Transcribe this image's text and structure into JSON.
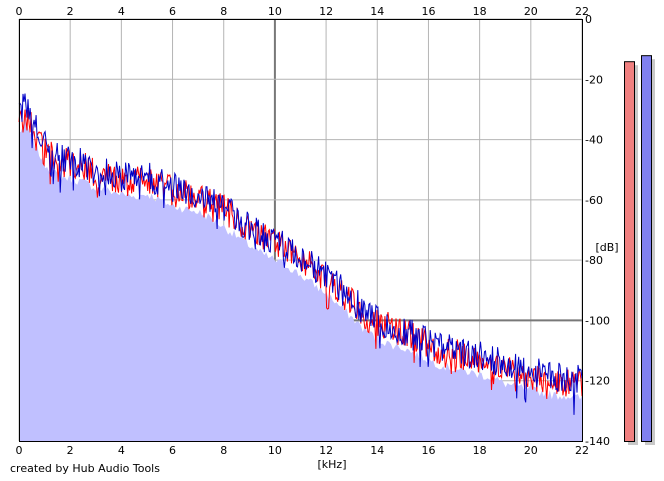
{
  "chart_data": {
    "type": "area",
    "xlabel": "[kHz]",
    "ylabel": "[dB]",
    "xlim": [
      0,
      22
    ],
    "ylim": [
      -140,
      0
    ],
    "x_ticks": [
      0,
      2,
      4,
      6,
      8,
      10,
      12,
      14,
      16,
      18,
      20,
      22
    ],
    "y_ticks": [
      0,
      -20,
      -40,
      -60,
      -80,
      -100,
      -120,
      -140
    ],
    "grid": true,
    "legend": "none",
    "colors": {
      "fill": "#c0c0ff",
      "series_red": "#ff0000",
      "series_blue": "#0000c8",
      "grid_minor": "#b4b4b4",
      "grid_major": "#787878",
      "meter_left": "#f08080",
      "meter_right": "#8080f0"
    },
    "series": [
      {
        "color": "#ff0000",
        "x": [
          0,
          0.25,
          0.5,
          1,
          1.5,
          2,
          2.5,
          3,
          3.5,
          4,
          4.5,
          5,
          5.5,
          6,
          6.5,
          7,
          7.5,
          8,
          8.5,
          9,
          9.5,
          10,
          10.5,
          11,
          11.5,
          12,
          12.5,
          13,
          13.5,
          14,
          14.5,
          15,
          15.5,
          16,
          16.5,
          17,
          17.5,
          18,
          18.5,
          19,
          19.5,
          20,
          20.5,
          21,
          21.5,
          22
        ],
        "values": [
          -35,
          -32,
          -36,
          -44,
          -47,
          -48,
          -49,
          -51,
          -52,
          -53,
          -54,
          -53,
          -55,
          -57,
          -58,
          -59,
          -61,
          -63,
          -67,
          -70,
          -72,
          -74,
          -77,
          -79,
          -82,
          -86,
          -90,
          -94,
          -98,
          -101,
          -102,
          -104,
          -106,
          -108,
          -110,
          -111,
          -112,
          -113,
          -114,
          -115,
          -117,
          -119,
          -119,
          -120,
          -121,
          -121
        ]
      },
      {
        "color": "#0000c8",
        "x": [
          0,
          0.25,
          0.5,
          1,
          1.5,
          2,
          2.5,
          3,
          3.5,
          4,
          4.5,
          5,
          5.5,
          6,
          6.5,
          7,
          7.5,
          8,
          8.5,
          9,
          9.5,
          10,
          10.5,
          11,
          11.5,
          12,
          12.5,
          13,
          13.5,
          14,
          14.5,
          15,
          15.5,
          16,
          16.5,
          17,
          17.5,
          18,
          18.5,
          19,
          19.5,
          20,
          20.5,
          21,
          21.5,
          22
        ],
        "values": [
          -32,
          -28,
          -34,
          -42,
          -46,
          -47,
          -48,
          -50,
          -51,
          -52,
          -53,
          -52,
          -54,
          -56,
          -57,
          -58,
          -60,
          -63,
          -66,
          -69,
          -72,
          -74,
          -76,
          -79,
          -82,
          -85,
          -89,
          -93,
          -97,
          -100,
          -102,
          -103,
          -105,
          -107,
          -109,
          -110,
          -111,
          -112,
          -113,
          -115,
          -116,
          -117,
          -118,
          -119,
          -119,
          -120
        ]
      }
    ]
  },
  "meters": {
    "left_db": -14,
    "right_db": -12,
    "color_left": "#f08080",
    "color_right": "#8080f0"
  },
  "credit": "created by Hub Audio Tools"
}
